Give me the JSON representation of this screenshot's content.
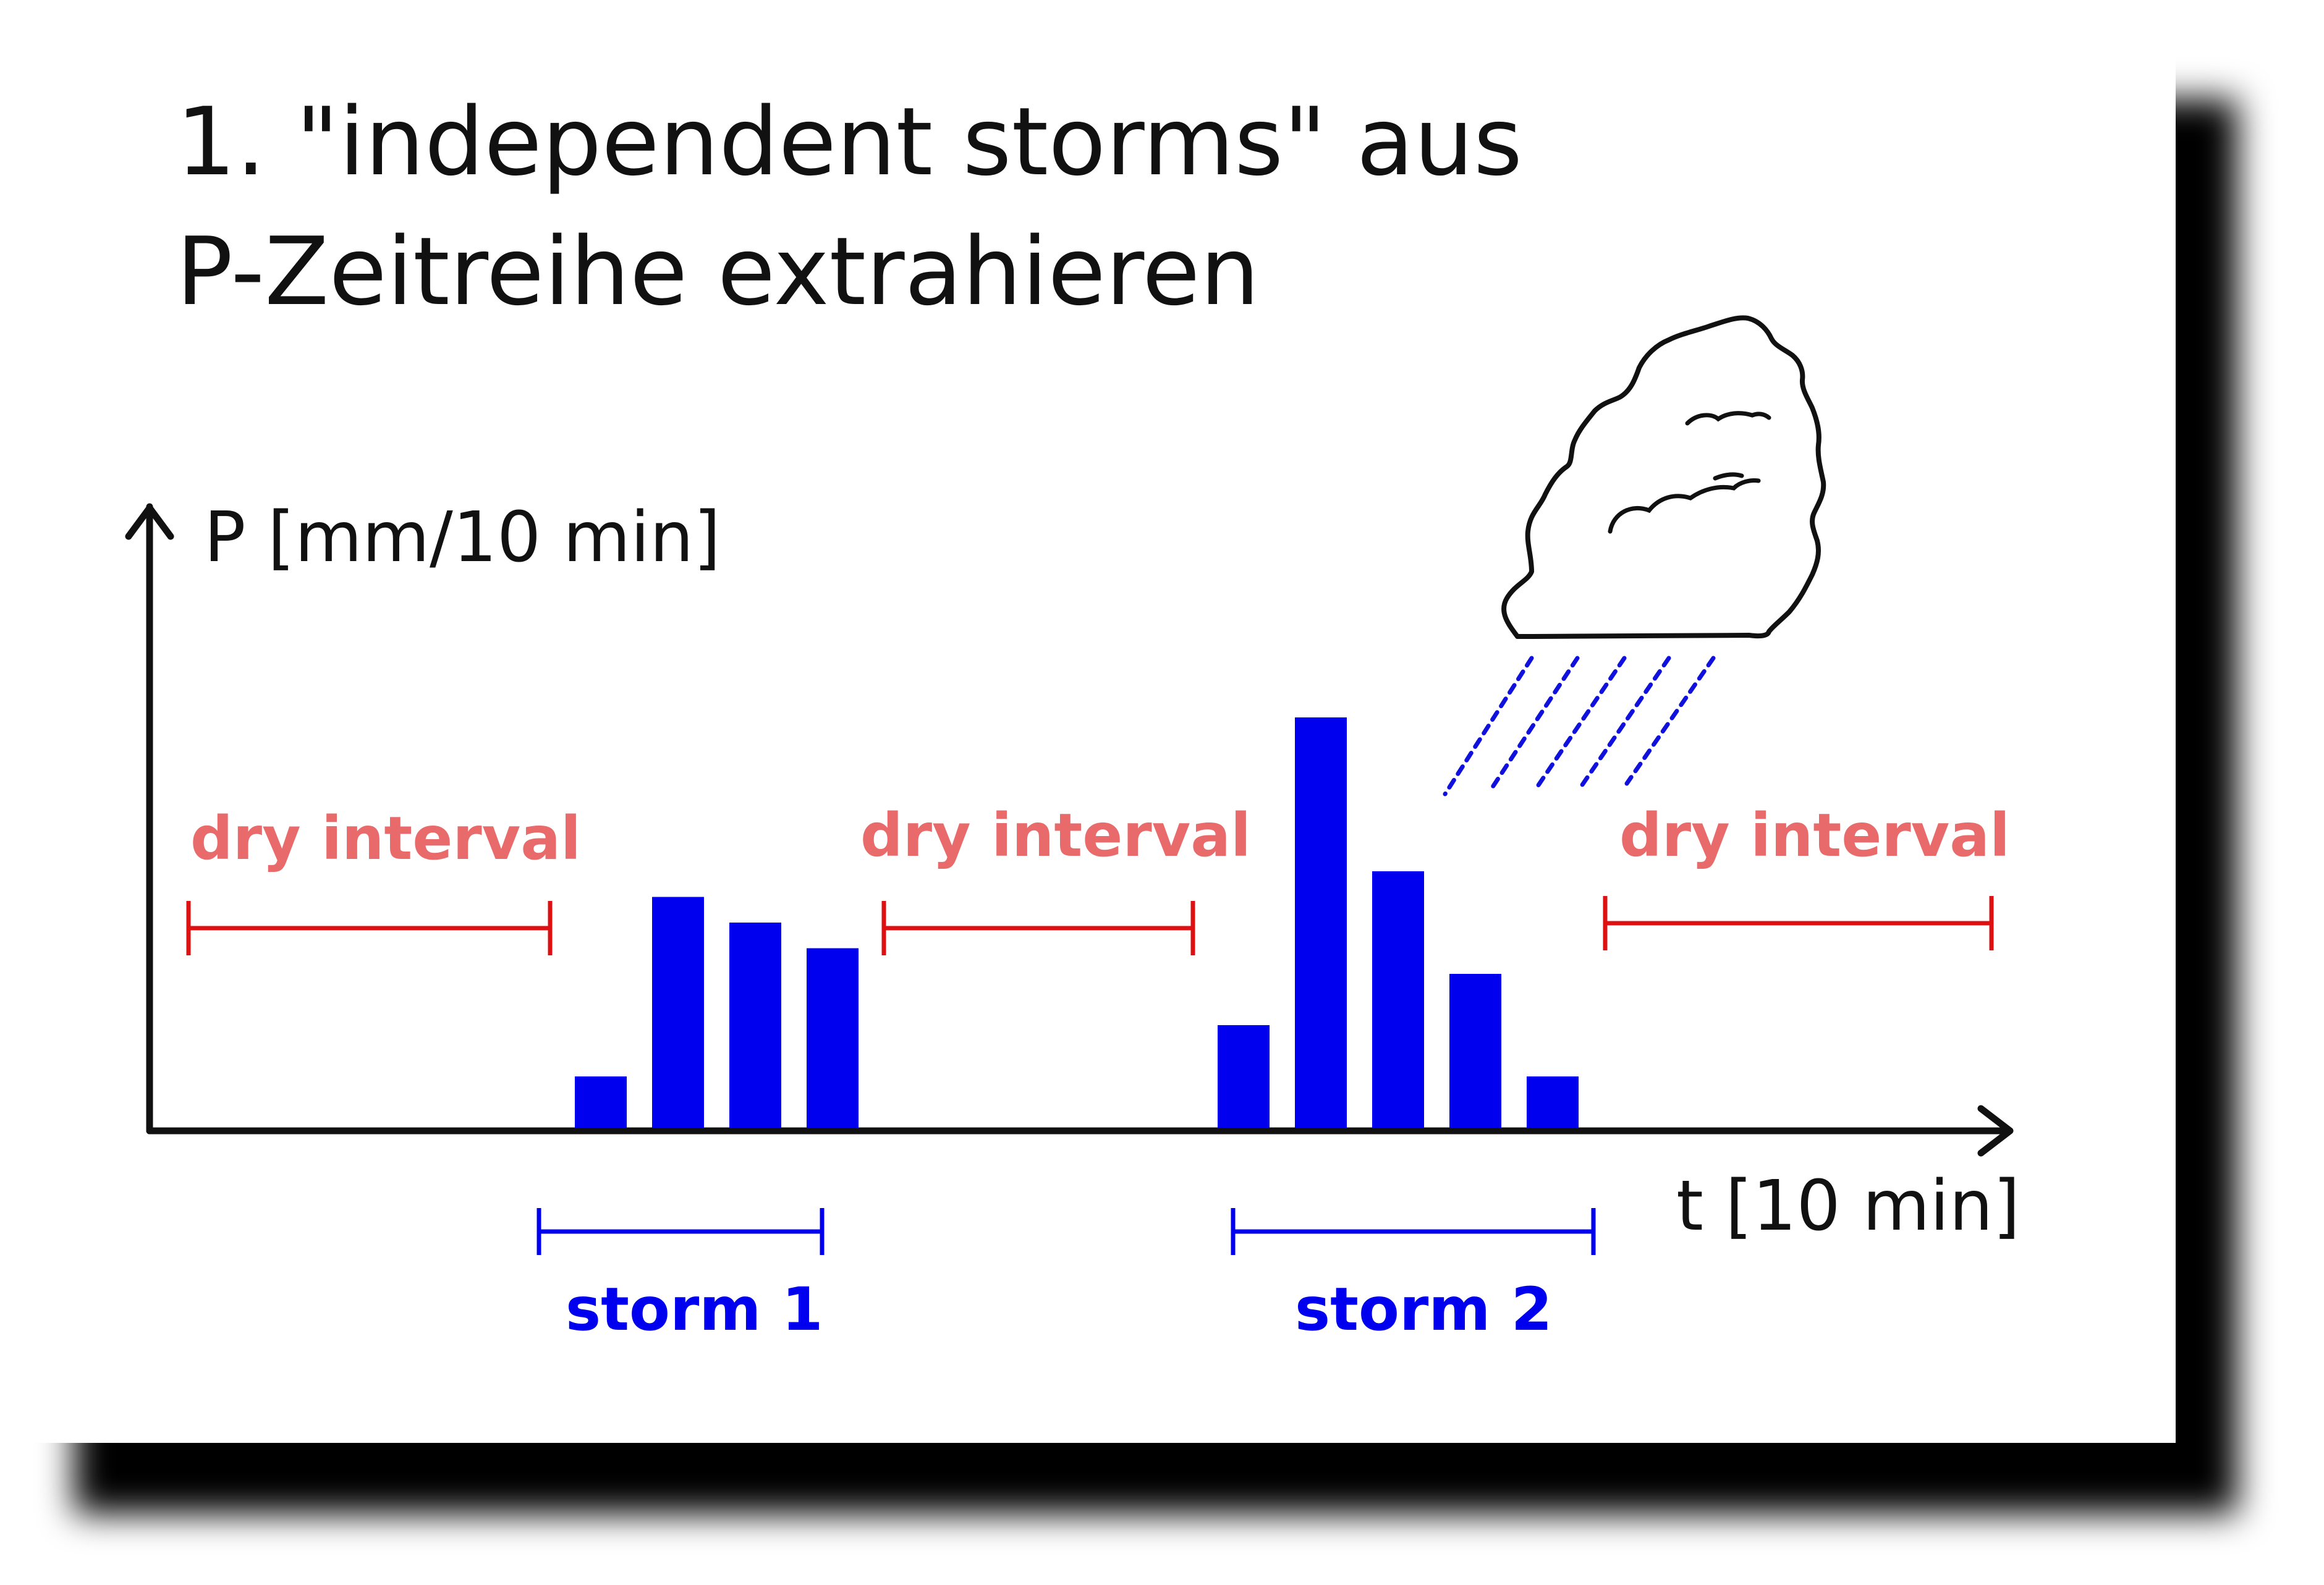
{
  "title": {
    "line1": "1. \"independent storms\" aus",
    "line2": "P-Zeitreihe extrahieren"
  },
  "axes": {
    "y_label": "P [mm/10 min]",
    "x_label": "t [10 min]"
  },
  "dry_intervals": [
    {
      "label": "dry interval"
    },
    {
      "label": "dry interval"
    },
    {
      "label": "dry interval"
    }
  ],
  "storms": [
    {
      "label": "storm 1"
    },
    {
      "label": "storm 2"
    }
  ],
  "chart_data": {
    "type": "bar",
    "series": [
      {
        "values": [
          1,
          4.5,
          4,
          3.5
        ]
      },
      {
        "values": [
          2,
          8,
          5,
          3,
          1
        ]
      }
    ]
  },
  "colors": {
    "bar": "#0000ee",
    "dry": "#e86a6a",
    "dry_line": "#dd1111",
    "storm": "#0000ee",
    "axis": "#111111"
  },
  "icons": [
    "rain-cloud-icon"
  ]
}
